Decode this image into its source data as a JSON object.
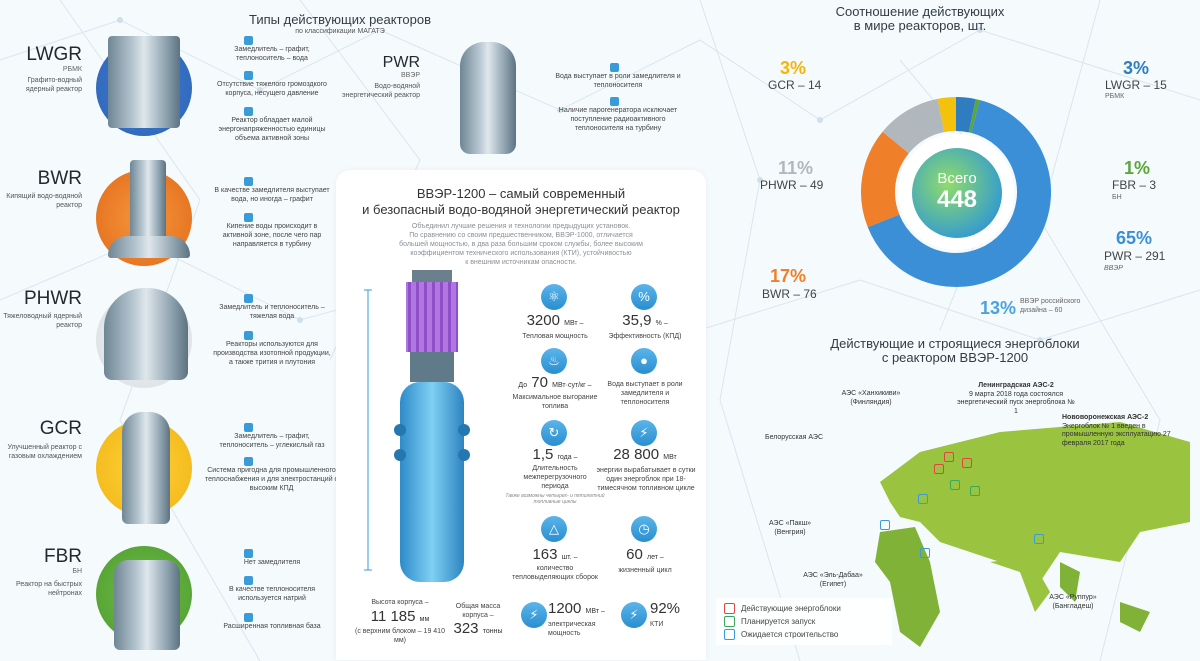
{
  "types": {
    "title": "Типы действующих реакторов",
    "subtitle": "по классификации МАГАТЭ",
    "reactors": [
      {
        "code": "LWGR",
        "sub": "РБМК",
        "desc": "Графито-водный ядерный реактор",
        "notes": [
          "Замедлитель – графит, теплоноситель – вода",
          "Отсутствие тяжелого громоздкого корпуса, несущего давление",
          "Реактор обладает малой энергонапряженностью единицы объема активной зоны"
        ]
      },
      {
        "code": "BWR",
        "sub": "",
        "desc": "Кипящий водо-водяной реактор",
        "notes": [
          "В качестве замедлителя выступает вода, но иногда – графит",
          "Кипение воды происходит в активной зоне, после чего пар направляется в турбину"
        ]
      },
      {
        "code": "PHWR",
        "sub": "",
        "desc": "Тяжеловодный ядерный реактор",
        "notes": [
          "Замедлитель и теплоноситель – тяжелая вода",
          "Реакторы используются для производства изотопной продукции, а также трития и плутония"
        ]
      },
      {
        "code": "GCR",
        "sub": "",
        "desc": "Улучшенный реактор с газовым охлаждением",
        "notes": [
          "Замедлитель – графит, теплоноситель – углекислый газ",
          "Система пригодна для промышленного теплоснабжения и для электростанций с высоким КПД"
        ]
      },
      {
        "code": "FBR",
        "sub": "БН",
        "desc": "Реактор на быстрых нейтронах",
        "notes": [
          "Нет замедлителя",
          "В качестве теплоносителя используется натрий",
          "Расширенная топливная база"
        ]
      }
    ],
    "pwr": {
      "code": "PWR",
      "sub": "ВВЭР",
      "desc": "Водо-водяной энергетический реактор",
      "notes": [
        "Вода выступает в роли замедлителя и теплоносителя",
        "Наличие парогенератора исключает поступление радиоактивного теплоносителя на турбину"
      ]
    }
  },
  "vver": {
    "title_line1": "ВВЭР-1200 – самый современный",
    "title_line2": "и безопасный водо-водяной энергетический реактор",
    "intro": [
      "Объединил лучшие решения и технологии предыдущих установок.",
      "По сравнению со своим предшественником, ВВЭР-1000, отличается",
      "большей мощностью, в два раза большим сроком службы, более высоким",
      "коэффициентом технического использования (КТИ), устойчивостью",
      "к внешним источникам опасности."
    ],
    "stats": [
      {
        "icon": "atom-icon",
        "glyph": "⚛",
        "value": "3200",
        "unit": "МВт –",
        "label": "Тепловая мощность"
      },
      {
        "icon": "percent-icon",
        "glyph": "%",
        "value": "35,9",
        "unit": "% –",
        "label": "Эффективность (КПД)"
      },
      {
        "icon": "flame-icon",
        "glyph": "🔥",
        "prefix": "До",
        "value": "70",
        "unit": "МВт·сут/кг –",
        "label": "Максимальное выгорание топлива"
      },
      {
        "icon": "drop-icon",
        "glyph": "💧",
        "value": "",
        "unit": "",
        "label": "Вода выступает в роли замедлителя и теплоносителя"
      },
      {
        "icon": "cycle-icon",
        "glyph": "↻",
        "value": "1,5",
        "unit": "года –",
        "label": "Длительность межперегрузочного периода",
        "footnote": "Также возможны четырех- и пятилетний топливные циклы"
      },
      {
        "icon": "lightning-icon",
        "glyph": "⚡",
        "value": "28 800",
        "unit": "МВт",
        "label": "энергии вырабатывает в сутки один энергоблок при 18-тимесячном топливном цикле"
      },
      {
        "icon": "triangle-icon",
        "glyph": "△",
        "value": "163",
        "unit": "шт. –",
        "label": "количество тепловыделяющих сборок"
      },
      {
        "icon": "clock-icon",
        "glyph": "◷",
        "value": "60",
        "unit": "лет –",
        "label": "жизненный цикл"
      },
      {
        "icon": "lightning-icon",
        "glyph": "⚡",
        "value": "1200",
        "unit": "МВт –",
        "label": "электрическая мощность"
      },
      {
        "icon": "lightning-icon",
        "glyph": "⚡",
        "value": "92%",
        "unit": "",
        "label": "КТИ"
      }
    ],
    "height": {
      "label": "Высота корпуса –",
      "value": "11 185",
      "unit": "мм",
      "note": "(с верхним блоком – 19 410 мм)"
    },
    "mass": {
      "label": "Общая масса корпуса –",
      "value": "323",
      "unit": "тонны"
    }
  },
  "ratio": {
    "title_line1": "Соотношение действующих",
    "title_line2": "в мире реакторов, шт.",
    "total_label": "Всего",
    "total": "448",
    "segments": [
      {
        "name": "PWR",
        "count": 291,
        "pct": "65%",
        "sub": "ВВЭР",
        "color": "#3a8fd6"
      },
      {
        "name": "BWR",
        "count": 76,
        "pct": "17%",
        "sub": "",
        "color": "#f07f2a"
      },
      {
        "name": "PHWR",
        "count": 49,
        "pct": "11%",
        "sub": "",
        "color": "#b0b7bd"
      },
      {
        "name": "GCR",
        "count": 14,
        "pct": "3%",
        "sub": "",
        "color": "#f4c20d"
      },
      {
        "name": "LWGR",
        "count": 15,
        "pct": "3%",
        "sub": "РБМК",
        "color": "#2f7dc0"
      },
      {
        "name": "FBR",
        "count": 3,
        "pct": "1%",
        "sub": "БН",
        "color": "#5ba53a"
      }
    ],
    "vver_share": {
      "pct": "13%",
      "label": "ВВЭР российского дизайна – 60"
    },
    "labels": {
      "gcr": "GCR – 14",
      "lwgr": "LWGR – 15",
      "phwr": "PHWR – 49",
      "fbr": "FBR – 3",
      "bwr": "BWR – 76",
      "pwr": "PWR – 291"
    }
  },
  "map": {
    "title_line1": "Действующие и строящиеся энергоблоки",
    "title_line2": "с реактором ВВЭР-1200",
    "sites": [
      {
        "name": "АЭС «Ханхикиви»",
        "country": "(Финляндия)"
      },
      {
        "name": "Ленинградская АЭС-2",
        "country": "9 марта 2018 года состоялся энергетический пуск энергоблока № 1"
      },
      {
        "name": "Нововоронежская АЭС-2",
        "country": "Энергоблок № 1 введен в промышленную эксплуатацию 27 февраля 2017 года"
      },
      {
        "name": "Белорусская АЭС",
        "country": ""
      },
      {
        "name": "АЭС «Пакш»",
        "country": "(Венгрия)"
      },
      {
        "name": "АЭС «Эль-Дабаа»",
        "country": "(Египет)"
      },
      {
        "name": "АЭС «Руппур»",
        "country": "(Бангладеш)"
      }
    ],
    "legend": [
      {
        "label": "Действующие энергоблоки",
        "color": "#e0453e"
      },
      {
        "label": "Планируется запуск",
        "color": "#3aa85a"
      },
      {
        "label": "Ожидается строительство",
        "color": "#3a9bd9"
      }
    ]
  }
}
